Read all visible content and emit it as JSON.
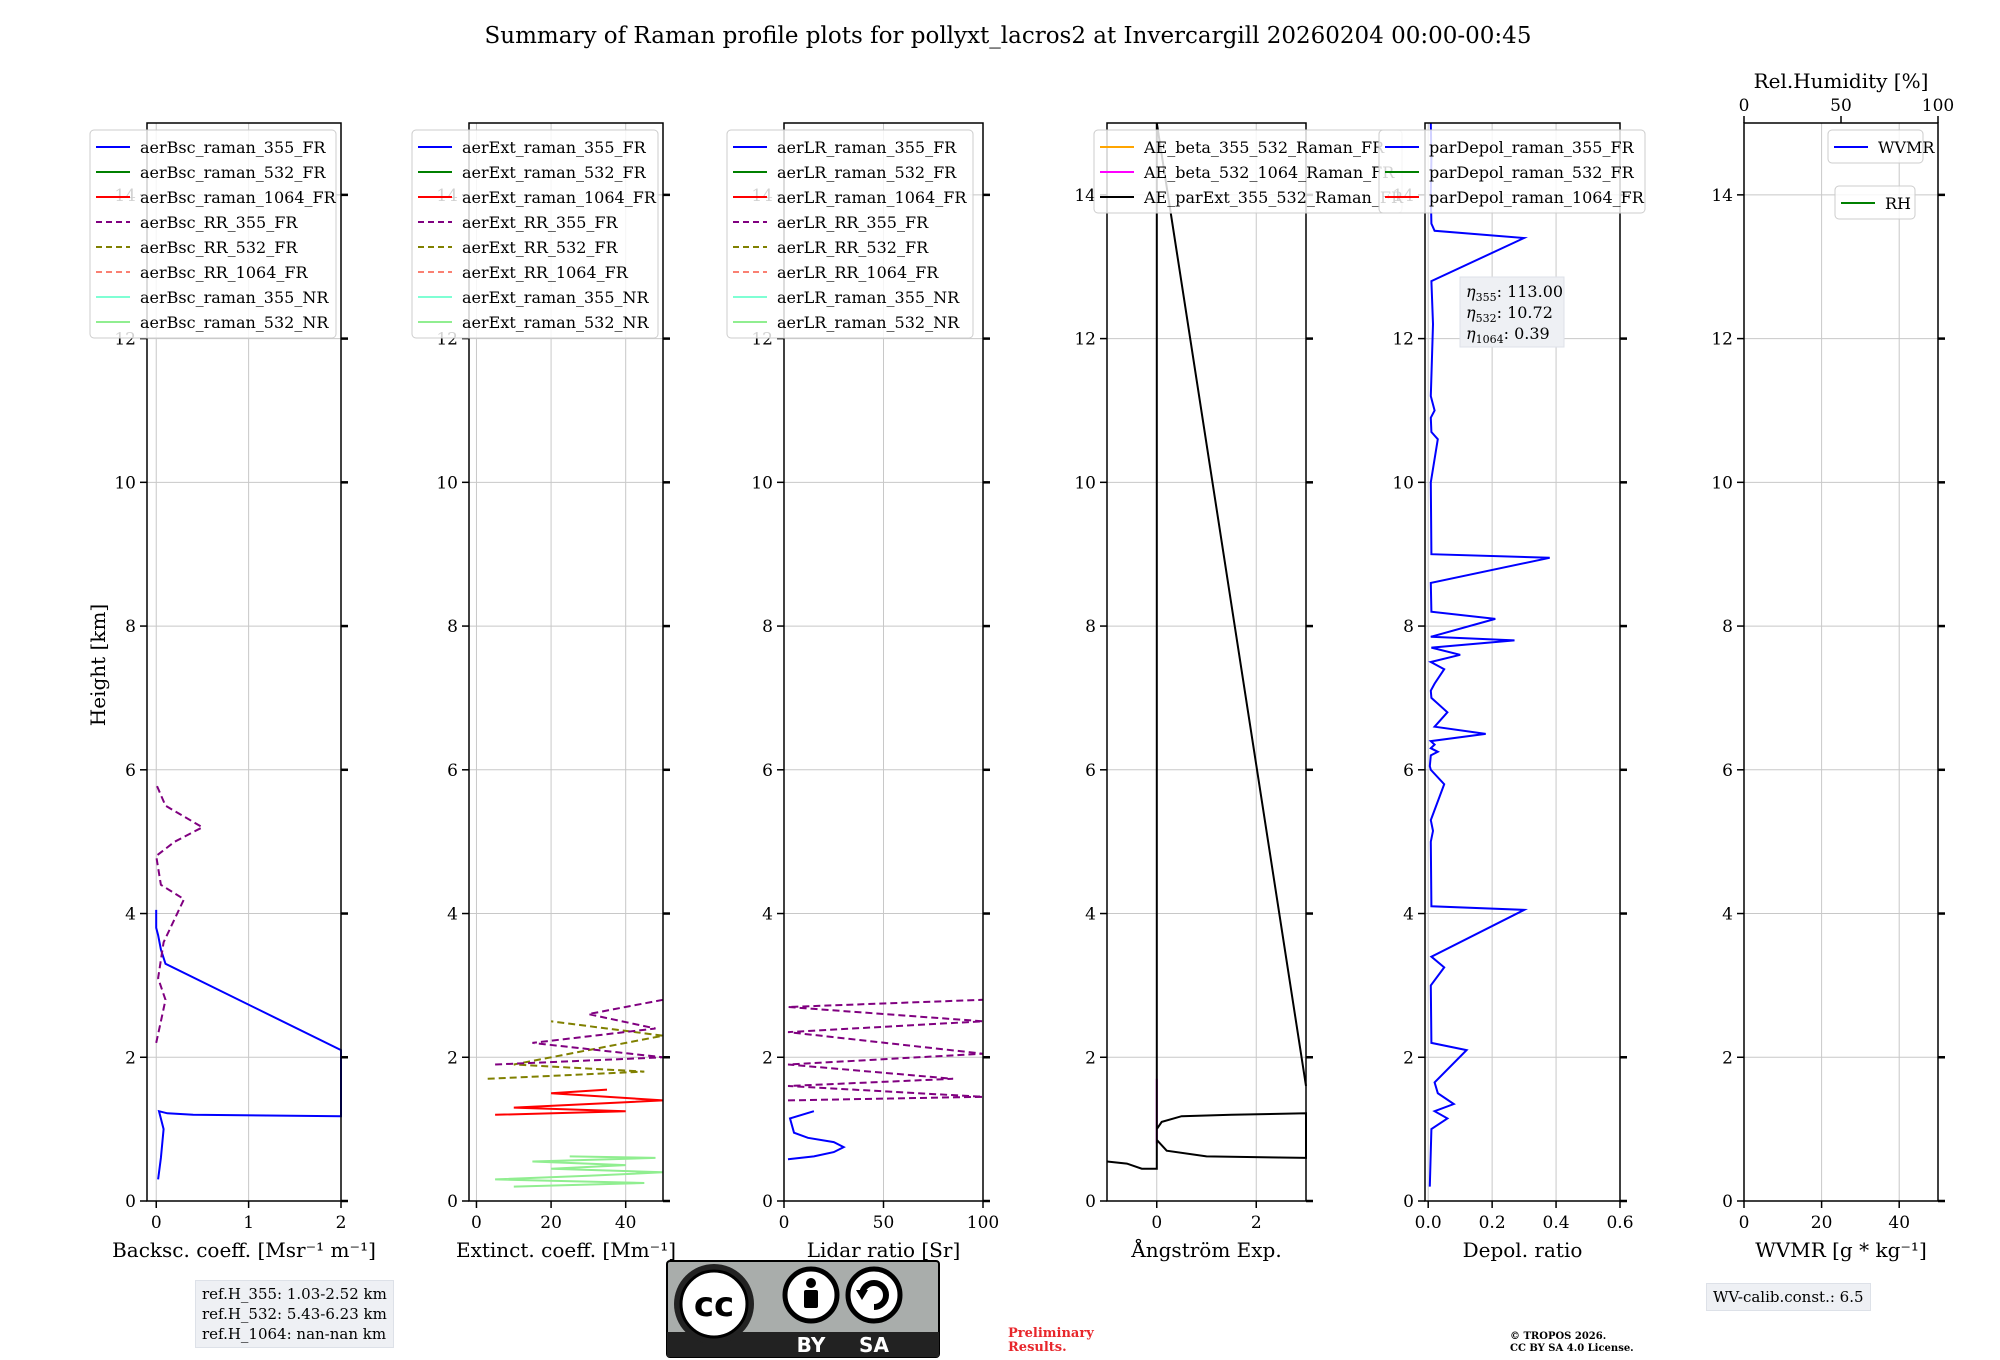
{
  "figure": {
    "title": "Summary of Raman profile plots for pollyxt_lacros2 at Invercargill 20260204 00:00-00:45",
    "ylabel": "Height [km]",
    "preliminary": [
      "Preliminary",
      "Results."
    ],
    "copyright": [
      "© TROPOS 2026.",
      "CC BY SA 4.0 License."
    ],
    "license_badge": {
      "left": "BY",
      "right": "SA"
    },
    "colors": {
      "blue": "#0000ff",
      "green": "#008000",
      "red": "#ff0000",
      "purple": "#800080",
      "olive": "#808000",
      "salmon": "#fa8072",
      "cyan": "#7fffd4",
      "lightgreen": "#90ee90",
      "orange": "#ffa500",
      "magenta": "#ff00ff",
      "black": "#000000"
    }
  },
  "info_boxes": {
    "ref_heights": [
      "ref.H_355: 1.03-2.52 km",
      "ref.H_532: 5.43-6.23 km",
      "ref.H_1064: nan-nan km"
    ],
    "wv_calib": "WV-calib.const.: 6.5"
  },
  "chart_data": [
    {
      "type": "line",
      "id": "bsc",
      "xlabel": "Backsc. coeff. [Msr⁻¹ m⁻¹]",
      "xlim": [
        -0.1,
        2
      ],
      "ylim": [
        0,
        15
      ],
      "xticks": [
        0,
        1,
        2
      ],
      "xticklabels": [
        "0",
        "1",
        "2"
      ],
      "yticks": [
        0,
        2,
        4,
        6,
        8,
        10,
        12,
        14
      ],
      "yticklabels": [
        "0",
        "2",
        "4",
        "6",
        "8",
        "10",
        "12",
        "14"
      ],
      "legend": [
        {
          "label": "aerBsc_raman_355_FR",
          "color": "blue",
          "dash": false
        },
        {
          "label": "aerBsc_raman_532_FR",
          "color": "green",
          "dash": false
        },
        {
          "label": "aerBsc_raman_1064_FR",
          "color": "red",
          "dash": false
        },
        {
          "label": "aerBsc_RR_355_FR",
          "color": "purple",
          "dash": true
        },
        {
          "label": "aerBsc_RR_532_FR",
          "color": "olive",
          "dash": true
        },
        {
          "label": "aerBsc_RR_1064_FR",
          "color": "salmon",
          "dash": true
        },
        {
          "label": "aerBsc_raman_355_NR",
          "color": "cyan",
          "dash": false
        },
        {
          "label": "aerBsc_raman_532_NR",
          "color": "lightgreen",
          "dash": false
        }
      ],
      "series": [
        {
          "name": "aerBsc_raman_355_FR",
          "color": "blue",
          "dash": false,
          "x": [
            0.02,
            0.05,
            0.08,
            0.03,
            0.12,
            0.4,
            1.2,
            2.0,
            2.0,
            0.1,
            0.05,
            0.02,
            0.0,
            0.0,
            0.0
          ],
          "y": [
            0.3,
            0.6,
            1.0,
            1.25,
            1.22,
            1.2,
            1.19,
            1.18,
            2.1,
            3.3,
            3.5,
            3.7,
            3.8,
            4.0,
            4.05
          ]
        },
        {
          "name": "aerBsc_RR_355_FR",
          "color": "purple",
          "dash": true,
          "x": [
            0.0,
            0.05,
            0.1,
            0.02,
            0.08,
            0.3,
            0.05,
            0.0,
            0.2,
            0.5,
            0.1,
            0.0
          ],
          "y": [
            2.2,
            2.5,
            2.8,
            3.1,
            3.6,
            4.2,
            4.4,
            4.8,
            5.0,
            5.2,
            5.5,
            5.8
          ]
        }
      ]
    },
    {
      "type": "line",
      "id": "ext",
      "xlabel": "Extinct. coeff. [Mm⁻¹]",
      "xlim": [
        -2,
        50
      ],
      "ylim": [
        0,
        15
      ],
      "xticks": [
        0,
        20,
        40
      ],
      "xticklabels": [
        "0",
        "20",
        "40"
      ],
      "yticks": [
        0,
        2,
        4,
        6,
        8,
        10,
        12,
        14
      ],
      "yticklabels": [
        "0",
        "2",
        "4",
        "6",
        "8",
        "10",
        "12",
        "14"
      ],
      "legend": [
        {
          "label": "aerExt_raman_355_FR",
          "color": "blue",
          "dash": false
        },
        {
          "label": "aerExt_raman_532_FR",
          "color": "green",
          "dash": false
        },
        {
          "label": "aerExt_raman_1064_FR",
          "color": "red",
          "dash": false
        },
        {
          "label": "aerExt_RR_355_FR",
          "color": "purple",
          "dash": true
        },
        {
          "label": "aerExt_RR_532_FR",
          "color": "olive",
          "dash": true
        },
        {
          "label": "aerExt_RR_1064_FR",
          "color": "salmon",
          "dash": true
        },
        {
          "label": "aerExt_raman_355_NR",
          "color": "cyan",
          "dash": false
        },
        {
          "label": "aerExt_raman_532_NR",
          "color": "lightgreen",
          "dash": false
        }
      ],
      "series": [
        {
          "name": "aerExt_raman_532_NR",
          "color": "lightgreen",
          "dash": false,
          "x": [
            10,
            45,
            5,
            30,
            50,
            20,
            40,
            15,
            48,
            25
          ],
          "y": [
            0.2,
            0.25,
            0.3,
            0.35,
            0.4,
            0.45,
            0.5,
            0.55,
            0.6,
            0.62
          ]
        },
        {
          "name": "aerExt_raman_1064_FR",
          "color": "red",
          "dash": false,
          "x": [
            5,
            40,
            10,
            50,
            20,
            35
          ],
          "y": [
            1.2,
            1.25,
            1.3,
            1.4,
            1.5,
            1.55
          ]
        },
        {
          "name": "aerExt_RR_532_FR",
          "color": "olive",
          "dash": true,
          "x": [
            3,
            45,
            10,
            30,
            50,
            20
          ],
          "y": [
            1.7,
            1.8,
            1.9,
            2.1,
            2.3,
            2.5
          ]
        },
        {
          "name": "aerExt_RR_355_FR",
          "color": "purple",
          "dash": true,
          "x": [
            5,
            50,
            15,
            48,
            30,
            50
          ],
          "y": [
            1.9,
            2.0,
            2.2,
            2.4,
            2.6,
            2.8
          ]
        }
      ]
    },
    {
      "type": "line",
      "id": "lr",
      "xlabel": "Lidar ratio [Sr]",
      "xlim": [
        0,
        100
      ],
      "ylim": [
        0,
        15
      ],
      "xticks": [
        0,
        50,
        100
      ],
      "xticklabels": [
        "0",
        "50",
        "100"
      ],
      "yticks": [
        0,
        2,
        4,
        6,
        8,
        10,
        12,
        14
      ],
      "yticklabels": [
        "0",
        "2",
        "4",
        "6",
        "8",
        "10",
        "12",
        "14"
      ],
      "legend": [
        {
          "label": "aerLR_raman_355_FR",
          "color": "blue",
          "dash": false
        },
        {
          "label": "aerLR_raman_532_FR",
          "color": "green",
          "dash": false
        },
        {
          "label": "aerLR_raman_1064_FR",
          "color": "red",
          "dash": false
        },
        {
          "label": "aerLR_RR_355_FR",
          "color": "purple",
          "dash": true
        },
        {
          "label": "aerLR_RR_532_FR",
          "color": "olive",
          "dash": true
        },
        {
          "label": "aerLR_RR_1064_FR",
          "color": "salmon",
          "dash": true
        },
        {
          "label": "aerLR_raman_355_NR",
          "color": "cyan",
          "dash": false
        },
        {
          "label": "aerLR_raman_532_NR",
          "color": "lightgreen",
          "dash": false
        }
      ],
      "series": [
        {
          "name": "aerLR_raman_355_FR",
          "color": "blue",
          "dash": false,
          "x": [
            2,
            15,
            25,
            30,
            25,
            12,
            5,
            3,
            15
          ],
          "y": [
            0.58,
            0.62,
            0.68,
            0.75,
            0.82,
            0.88,
            0.95,
            1.15,
            1.25
          ]
        },
        {
          "name": "aerLR_RR_355_FR",
          "color": "purple",
          "dash": true,
          "x": [
            2,
            100,
            2,
            85,
            2,
            100,
            2,
            100,
            2,
            100
          ],
          "y": [
            1.4,
            1.45,
            1.6,
            1.7,
            1.9,
            2.05,
            2.35,
            2.5,
            2.7,
            2.8
          ]
        }
      ]
    },
    {
      "type": "line",
      "id": "ae",
      "xlabel": "Ångström Exp.",
      "xlim": [
        -1,
        3
      ],
      "ylim": [
        0,
        15
      ],
      "xticks": [
        0,
        2
      ],
      "xticklabels": [
        "0",
        "2"
      ],
      "yticks": [
        0,
        2,
        4,
        6,
        8,
        10,
        12,
        14
      ],
      "yticklabels": [
        "0",
        "2",
        "4",
        "6",
        "8",
        "10",
        "12",
        "14"
      ],
      "legend": [
        {
          "label": "AE_beta_355_532_Raman_FR",
          "color": "orange",
          "dash": false
        },
        {
          "label": "AE_beta_532_1064_Raman_FR",
          "color": "magenta",
          "dash": false
        },
        {
          "label": "AE_parExt_355_532_Raman_FR",
          "color": "black",
          "dash": false
        }
      ],
      "series": [
        {
          "name": "AE_beta_532_1064_Raman_FR",
          "color": "magenta",
          "dash": false,
          "x": [
            0.0,
            0.0
          ],
          "y": [
            0.8,
            1.7
          ]
        },
        {
          "name": "AE_parExt_355_532_Raman_FR",
          "color": "black",
          "dash": false,
          "x": [
            -1.0,
            -0.6,
            -0.3,
            0.0,
            0.0,
            0.0,
            0.0,
            0.1,
            0.5,
            1.5,
            3.0,
            3.0,
            1.0,
            0.2,
            0.0,
            0.0,
            0.0,
            3.0
          ],
          "y": [
            0.55,
            0.52,
            0.45,
            0.45,
            0.55,
            0.8,
            1.0,
            1.1,
            1.18,
            1.2,
            1.22,
            0.6,
            0.62,
            0.7,
            0.85,
            1.7,
            15,
            1.6
          ]
        }
      ]
    },
    {
      "type": "line",
      "id": "depol",
      "xlabel": "Depol. ratio",
      "xlim": [
        -0.01,
        0.6
      ],
      "ylim": [
        0,
        15
      ],
      "xticks": [
        0,
        0.2,
        0.4,
        0.6
      ],
      "xticklabels": [
        "0.0",
        "0.2",
        "0.4",
        "0.6"
      ],
      "yticks": [
        0,
        2,
        4,
        6,
        8,
        10,
        12,
        14
      ],
      "yticklabels": [
        "0",
        "2",
        "4",
        "6",
        "8",
        "10",
        "12",
        "14"
      ],
      "legend": [
        {
          "label": "parDepol_raman_355_FR",
          "color": "blue",
          "dash": false
        },
        {
          "label": "parDepol_raman_532_FR",
          "color": "green",
          "dash": false
        },
        {
          "label": "parDepol_raman_1064_FR",
          "color": "red",
          "dash": false
        }
      ],
      "annotation": [
        {
          "symbol": "η",
          "sub": "355",
          "value": ": 113.00"
        },
        {
          "symbol": "η",
          "sub": "532",
          "value": ": 10.72"
        },
        {
          "symbol": "η",
          "sub": "1064",
          "value": ": 0.39"
        }
      ],
      "series": [
        {
          "name": "parDepol_raman_355_FR",
          "color": "blue",
          "dash": false,
          "x": [
            0.005,
            0.01,
            0.06,
            0.02,
            0.08,
            0.03,
            0.02,
            0.12,
            0.01,
            0.008,
            0.05,
            0.01,
            0.3,
            0.01,
            0.008,
            0.015,
            0.008,
            0.05,
            0.008,
            0.005,
            0.008,
            0.03,
            0.008,
            0.02,
            0.008,
            0.18,
            0.02,
            0.06,
            0.01,
            0.008,
            0.02,
            0.05,
            0.008,
            0.1,
            0.01,
            0.27,
            0.008,
            0.21,
            0.01,
            0.008,
            0.38,
            0.01,
            0.008,
            0.03,
            0.01,
            0.008,
            0.02,
            0.008,
            0.015,
            0.01,
            0.3,
            0.02,
            0.01,
            0.008,
            0.01,
            0.008
          ],
          "y": [
            0.2,
            1.0,
            1.15,
            1.25,
            1.35,
            1.5,
            1.65,
            2.1,
            2.2,
            3.0,
            3.25,
            3.4,
            4.05,
            4.1,
            5.0,
            5.15,
            5.3,
            5.8,
            6.0,
            6.05,
            6.2,
            6.25,
            6.3,
            6.35,
            6.4,
            6.5,
            6.6,
            6.8,
            7.0,
            7.1,
            7.2,
            7.4,
            7.5,
            7.6,
            7.7,
            7.8,
            7.85,
            8.1,
            8.2,
            8.6,
            8.95,
            9.0,
            10.0,
            10.6,
            10.7,
            10.9,
            11.0,
            11.2,
            12.2,
            12.8,
            13.4,
            13.5,
            13.6,
            14.0,
            14.5,
            15.0
          ]
        }
      ]
    },
    {
      "type": "line",
      "id": "wv",
      "xlabel": "WVMR [g * kg⁻¹]",
      "xlim": [
        0,
        50
      ],
      "ylim": [
        0,
        15
      ],
      "xticks": [
        0,
        20,
        40
      ],
      "xticklabels": [
        "0",
        "20",
        "40"
      ],
      "yticks": [
        0,
        2,
        4,
        6,
        8,
        10,
        12,
        14
      ],
      "yticklabels": [
        "0",
        "2",
        "4",
        "6",
        "8",
        "10",
        "12",
        "14"
      ],
      "top_axis": {
        "label": "Rel.Humidity [%]",
        "lim": [
          0,
          100
        ],
        "ticks": [
          0,
          50,
          100
        ],
        "ticklabels": [
          "0",
          "50",
          "100"
        ]
      },
      "legend": [
        {
          "label": "WVMR",
          "color": "blue",
          "dash": false
        }
      ],
      "legend2": [
        {
          "label": "RH",
          "color": "green",
          "dash": false
        }
      ],
      "series": []
    }
  ]
}
